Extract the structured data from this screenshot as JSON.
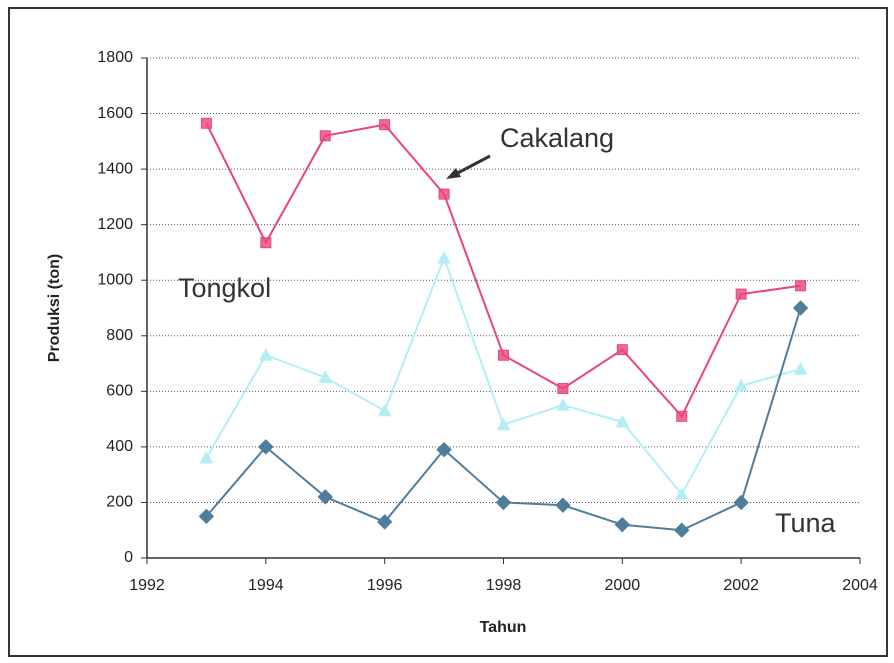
{
  "chart_data": {
    "type": "line",
    "xlabel": "Tahun",
    "ylabel": "Produksi (ton)",
    "x": [
      1993,
      1994,
      1995,
      1996,
      1997,
      1998,
      1999,
      2000,
      2001,
      2002,
      2003
    ],
    "series": [
      {
        "name": "Cakalang",
        "color": "#e8457a",
        "marker": "square",
        "values": [
          1565,
          1135,
          1520,
          1560,
          1310,
          730,
          610,
          750,
          510,
          950,
          980
        ]
      },
      {
        "name": "Tongkol",
        "color": "#b4eef5",
        "marker": "triangle",
        "values": [
          360,
          730,
          650,
          530,
          1080,
          480,
          550,
          490,
          230,
          620,
          680
        ]
      },
      {
        "name": "Tuna",
        "color": "#4f7d9c",
        "marker": "diamond",
        "values": [
          150,
          400,
          220,
          130,
          390,
          200,
          190,
          120,
          100,
          200,
          900
        ]
      }
    ],
    "xlim": [
      1992,
      2004
    ],
    "xticks": [
      1992,
      1994,
      1996,
      1998,
      2000,
      2002,
      2004
    ],
    "ylim": [
      0,
      1800
    ],
    "yticks": [
      0,
      200,
      400,
      600,
      800,
      1000,
      1200,
      1400,
      1600,
      1800
    ],
    "grid": true
  }
}
